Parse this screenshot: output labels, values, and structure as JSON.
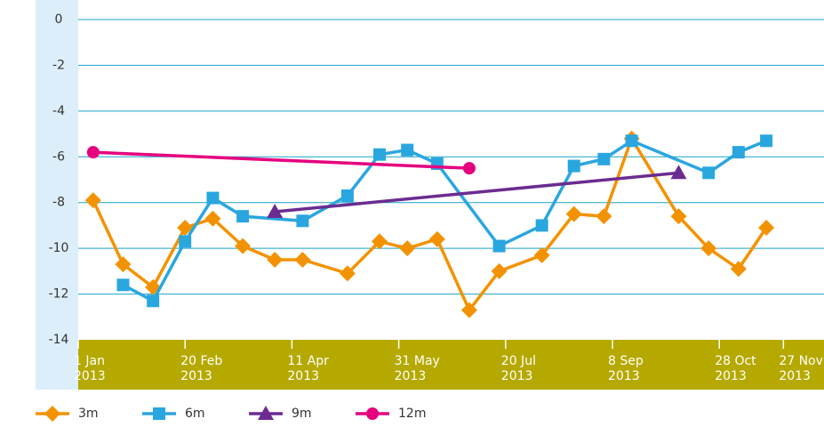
{
  "chart_data": {
    "type": "line",
    "xlim": [
      "2013-01-01",
      "2013-12-16"
    ],
    "xticks": [
      {
        "value": "2013-01-01",
        "label": "1 Jan 2013"
      },
      {
        "value": "2013-02-20",
        "label": "20 Feb 2013"
      },
      {
        "value": "2013-04-11",
        "label": "11 Apr 2013"
      },
      {
        "value": "2013-05-31",
        "label": "31 May 2013"
      },
      {
        "value": "2013-07-20",
        "label": "20 Jul 2013"
      },
      {
        "value": "2013-09-08",
        "label": "8 Sep 2013"
      },
      {
        "value": "2013-10-28",
        "label": "28 Oct 2013"
      },
      {
        "value": "2013-11-27",
        "label": "27 Nov 2013"
      }
    ],
    "ylim": [
      -14,
      0
    ],
    "yticks": [
      0,
      -2,
      -4,
      -6,
      -8,
      -10,
      -12,
      -14
    ],
    "grid": true,
    "legend": "bottom",
    "series": [
      {
        "name": "3m",
        "color": "#f39200",
        "marker": "diamond",
        "x": [
          "2013-01-08",
          "2013-01-22",
          "2013-02-05",
          "2013-02-20",
          "2013-03-05",
          "2013-03-19",
          "2013-04-03",
          "2013-04-16",
          "2013-05-07",
          "2013-05-22",
          "2013-06-04",
          "2013-06-18",
          "2013-07-03",
          "2013-07-17",
          "2013-08-06",
          "2013-08-21",
          "2013-09-04",
          "2013-09-17",
          "2013-10-09",
          "2013-10-23",
          "2013-11-06",
          "2013-11-19"
        ],
        "values": [
          -7.9,
          -10.7,
          -11.7,
          -9.1,
          -8.7,
          -9.9,
          -10.5,
          -10.5,
          -11.1,
          -9.7,
          -10.0,
          -9.6,
          -12.7,
          -11.0,
          -10.3,
          -8.5,
          -8.6,
          -5.2,
          -8.6,
          -10.0,
          -10.9,
          -9.1
        ]
      },
      {
        "name": "6m",
        "color": "#2aa6df",
        "marker": "square",
        "x": [
          "2013-01-22",
          "2013-02-05",
          "2013-02-20",
          "2013-03-05",
          "2013-03-19",
          "2013-04-16",
          "2013-05-07",
          "2013-05-22",
          "2013-06-04",
          "2013-06-18",
          "2013-07-17",
          "2013-08-06",
          "2013-08-21",
          "2013-09-04",
          "2013-09-17",
          "2013-10-23",
          "2013-11-06",
          "2013-11-19"
        ],
        "values": [
          -11.6,
          -12.3,
          -9.7,
          -7.8,
          -8.6,
          -8.8,
          -7.7,
          -5.9,
          -5.7,
          -6.3,
          -9.9,
          -9.0,
          -6.4,
          -6.1,
          -5.3,
          -6.7,
          -5.8,
          -5.3
        ]
      },
      {
        "name": "9m",
        "color": "#6b2c91",
        "marker": "triangle",
        "x": [
          "2013-04-03",
          "2013-10-09"
        ],
        "values": [
          -8.4,
          -6.7
        ]
      },
      {
        "name": "12m",
        "color": "#e5007e",
        "marker": "circle",
        "x": [
          "2013-01-08",
          "2013-07-03"
        ],
        "values": [
          -5.8,
          -6.5
        ]
      }
    ]
  }
}
